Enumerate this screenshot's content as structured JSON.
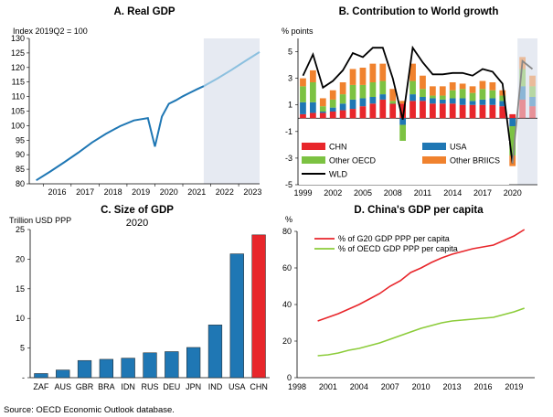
{
  "colors": {
    "gdp_line": "#1f77b4",
    "gdp_projection": "#8cc0df",
    "projection_band": "#e6eaf2",
    "chn": "#e8262b",
    "usa": "#1f77b4",
    "other_oecd": "#7cc242",
    "other_briics": "#f0822e",
    "wld": "#000000",
    "g20_line": "#e8262b",
    "oecd_line": "#8ccc3a"
  },
  "source": "Source: OECD Economic Outlook database.",
  "chart_data": [
    {
      "id": "A",
      "type": "line",
      "title": "A. Real GDP",
      "ylabel": "Index 2019Q2 = 100",
      "ylim": [
        80,
        130
      ],
      "yticks": [
        80,
        85,
        90,
        95,
        100,
        105,
        110,
        115,
        120,
        125,
        130
      ],
      "xlim": [
        2015.5,
        2023.75
      ],
      "xticks": [
        "2016",
        "2017",
        "2018",
        "2019",
        "2020",
        "2021",
        "2022",
        "2023"
      ],
      "projection_start": 2021.75,
      "series": [
        {
          "x": [
            2015.75,
            2016.25,
            2016.75,
            2017.25,
            2017.75,
            2018.25,
            2018.75,
            2019.25,
            2019.75,
            2020.0,
            2020.25,
            2020.5,
            2020.75,
            2021.0,
            2021.25,
            2021.5,
            2021.75
          ],
          "values": [
            81.2,
            84.2,
            87.4,
            90.7,
            94.2,
            97.2,
            99.8,
            101.8,
            102.6,
            92.8,
            103.1,
            107.5,
            108.7,
            110.1,
            111.3,
            112.5,
            113.6
          ]
        },
        {
          "projection": true,
          "x": [
            2021.75,
            2022.25,
            2022.75,
            2023.25,
            2023.75
          ],
          "values": [
            113.6,
            116.3,
            119.2,
            122.3,
            125.3
          ]
        }
      ]
    },
    {
      "id": "B",
      "type": "bar",
      "title": "B. Contribution to World growth",
      "ylabel": "% points",
      "ylim": [
        -5,
        6
      ],
      "yticks": [
        -5,
        -3,
        -1,
        1,
        3,
        5
      ],
      "x": [
        1999,
        2000,
        2001,
        2002,
        2003,
        2004,
        2005,
        2006,
        2007,
        2008,
        2009,
        2010,
        2011,
        2012,
        2013,
        2014,
        2015,
        2016,
        2017,
        2018,
        2019,
        2020,
        2021,
        2022
      ],
      "xticks": [
        "1999",
        "2002",
        "2005",
        "2008",
        "2011",
        "2014",
        "2017",
        "2020"
      ],
      "projection_start": 2021,
      "series": [
        {
          "name": "CHN",
          "values": [
            0.3,
            0.4,
            0.4,
            0.5,
            0.6,
            0.7,
            0.9,
            1.1,
            1.4,
            1.1,
            1.1,
            1.3,
            1.3,
            1.1,
            1.1,
            1.1,
            1.0,
            1.0,
            1.0,
            1.0,
            0.9,
            0.3,
            1.4,
            0.9
          ]
        },
        {
          "name": "USA",
          "values": [
            0.9,
            0.8,
            0.1,
            0.3,
            0.5,
            0.7,
            0.6,
            0.5,
            0.4,
            0.0,
            -0.5,
            0.5,
            0.3,
            0.4,
            0.3,
            0.4,
            0.5,
            0.3,
            0.4,
            0.5,
            0.4,
            -0.6,
            1.0,
            0.7
          ]
        },
        {
          "name": "Other OECD",
          "values": [
            1.2,
            1.5,
            0.4,
            0.6,
            0.7,
            1.1,
            1.0,
            1.1,
            1.0,
            0.2,
            -1.5,
            1.0,
            0.6,
            0.2,
            0.3,
            0.6,
            0.7,
            0.6,
            0.8,
            0.6,
            0.4,
            -2.2,
            1.3,
            0.8
          ]
        },
        {
          "name": "Other BRIICS",
          "values": [
            0.6,
            0.9,
            0.6,
            0.7,
            0.9,
            1.2,
            1.3,
            1.4,
            1.3,
            0.9,
            0.2,
            1.3,
            1.0,
            0.7,
            0.7,
            0.6,
            0.4,
            0.5,
            0.6,
            0.6,
            0.4,
            -0.8,
            0.9,
            0.8
          ]
        },
        {
          "name": "WLD",
          "type": "line",
          "values": [
            3.2,
            4.8,
            2.3,
            2.8,
            3.6,
            4.9,
            4.6,
            5.3,
            5.3,
            3.0,
            -0.1,
            5.3,
            4.2,
            3.3,
            3.3,
            3.4,
            3.4,
            3.2,
            3.7,
            3.5,
            2.6,
            -3.4,
            4.3,
            3.7
          ]
        }
      ]
    },
    {
      "id": "C",
      "type": "bar",
      "title": "C. Size of GDP",
      "subtitle": "2020",
      "ylabel": "Trillion USD PPP",
      "ylim": [
        0,
        25
      ],
      "yticks": [
        "-",
        "5",
        "10",
        "15",
        "20",
        "25"
      ],
      "categories": [
        "ZAF",
        "AUS",
        "GBR",
        "BRA",
        "IDN",
        "RUS",
        "DEU",
        "JPN",
        "IND",
        "USA",
        "CHN"
      ],
      "values": [
        0.7,
        1.3,
        2.9,
        3.1,
        3.3,
        4.2,
        4.4,
        5.1,
        8.9,
        20.9,
        24.1
      ]
    },
    {
      "id": "D",
      "type": "line",
      "title": "D. China's GDP per capita",
      "ylabel": "%",
      "ylim": [
        0,
        80
      ],
      "yticks": [
        0,
        20,
        40,
        60,
        80
      ],
      "xlim": [
        1998,
        2021
      ],
      "xticks": [
        "1998",
        "2001",
        "2004",
        "2007",
        "2010",
        "2013",
        "2016",
        "2019"
      ],
      "series": [
        {
          "name": "% of G20 GDP PPP per capita",
          "x": [
            2000,
            2001,
            2002,
            2003,
            2004,
            2005,
            2006,
            2007,
            2008,
            2009,
            2010,
            2011,
            2012,
            2013,
            2014,
            2015,
            2016,
            2017,
            2018,
            2019,
            2020
          ],
          "values": [
            31,
            33,
            35,
            37.5,
            40,
            43,
            46,
            50,
            53,
            57.5,
            60,
            63,
            65.5,
            67.5,
            69,
            70.5,
            71.5,
            72.5,
            75,
            77.5,
            81
          ]
        },
        {
          "name": "% of OECD GDP PPP per capita",
          "x": [
            2000,
            2001,
            2002,
            2003,
            2004,
            2005,
            2006,
            2007,
            2008,
            2009,
            2010,
            2011,
            2012,
            2013,
            2014,
            2015,
            2016,
            2017,
            2018,
            2019,
            2020
          ],
          "values": [
            12,
            12.5,
            13.5,
            15,
            16,
            17.5,
            19,
            21,
            23,
            25,
            27,
            28.5,
            30,
            31,
            31.5,
            32,
            32.5,
            33,
            34.5,
            36,
            38
          ]
        }
      ]
    }
  ]
}
